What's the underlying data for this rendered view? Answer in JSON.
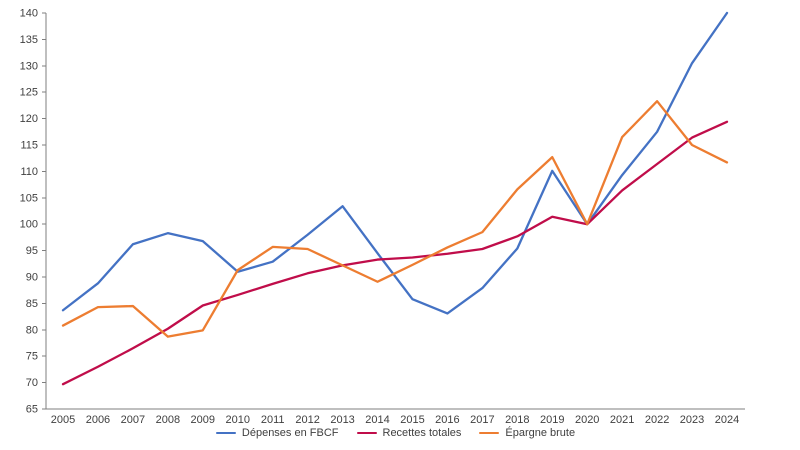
{
  "chart_data": {
    "type": "line",
    "title": "",
    "xlabel": "",
    "ylabel": "",
    "x": [
      2005,
      2006,
      2007,
      2008,
      2009,
      2010,
      2011,
      2012,
      2013,
      2014,
      2015,
      2016,
      2017,
      2018,
      2019,
      2020,
      2021,
      2022,
      2023,
      2024
    ],
    "series": [
      {
        "name": "Dépenses en FBCF",
        "color": "#4472C4",
        "values": [
          83.7,
          88.8,
          96.2,
          98.3,
          96.8,
          91.0,
          92.9,
          98.0,
          103.4,
          94.5,
          85.8,
          83.1,
          87.9,
          95.4,
          110.1,
          100.0,
          109.3,
          117.5,
          130.5,
          140.0
        ]
      },
      {
        "name": "Recettes totales",
        "color": "#C00D4A",
        "values": [
          69.7,
          73.0,
          76.5,
          80.2,
          84.6,
          86.6,
          88.7,
          90.7,
          92.2,
          93.3,
          93.7,
          94.4,
          95.3,
          97.7,
          101.4,
          100.0,
          106.4,
          111.4,
          116.4,
          119.4
        ]
      },
      {
        "name": "Épargne brute",
        "color": "#ED7D31",
        "values": [
          80.8,
          84.3,
          84.5,
          78.7,
          79.9,
          91.3,
          95.7,
          95.3,
          92.2,
          89.1,
          92.3,
          95.6,
          98.5,
          106.6,
          112.7,
          100.0,
          116.5,
          123.3,
          115.0,
          111.7
        ]
      }
    ],
    "ylim": [
      65,
      140
    ],
    "ytick_step": 5,
    "grid": false,
    "legend_position": "bottom-center",
    "axis_color": "#7F7F7F",
    "text_color": "#404040"
  }
}
